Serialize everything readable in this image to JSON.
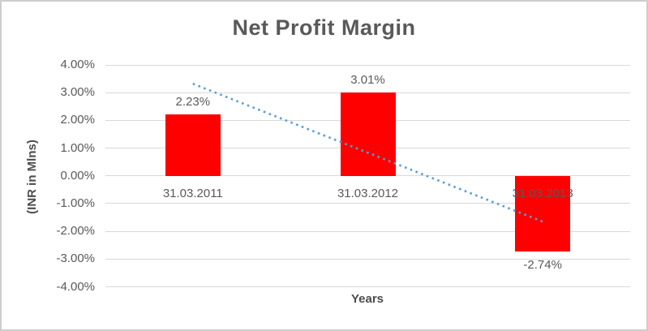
{
  "chart_data": {
    "type": "bar",
    "title": "Net Profit Margin",
    "xlabel": "Years",
    "ylabel": "(INR in Mlns)",
    "categories": [
      "31.03.2011",
      "31.03.2012",
      "31.03.2013"
    ],
    "values": [
      2.23,
      3.01,
      -2.74
    ],
    "value_labels": [
      "2.23%",
      "3.01%",
      "-2.74%"
    ],
    "ylim": [
      -4,
      4
    ],
    "ytick_values": [
      4,
      3,
      2,
      1,
      0,
      -1,
      -2,
      -3,
      -4
    ],
    "ytick_labels": [
      "4.00%",
      "3.00%",
      "2.00%",
      "1.00%",
      "0.00%",
      "-1.00%",
      "-2.00%",
      "-3.00%",
      "-4.00%"
    ],
    "grid": true,
    "legend": "none",
    "bar_color": "#ff0000",
    "trendline": {
      "type": "linear",
      "style": "dotted",
      "color": "#5b9bd5",
      "start_value": 3.32,
      "end_value": -1.65
    },
    "colors": {
      "gridline": "#d9d9d9",
      "text": "#595959",
      "frame_border": "#cdcdcd",
      "background": "#ffffff"
    }
  }
}
